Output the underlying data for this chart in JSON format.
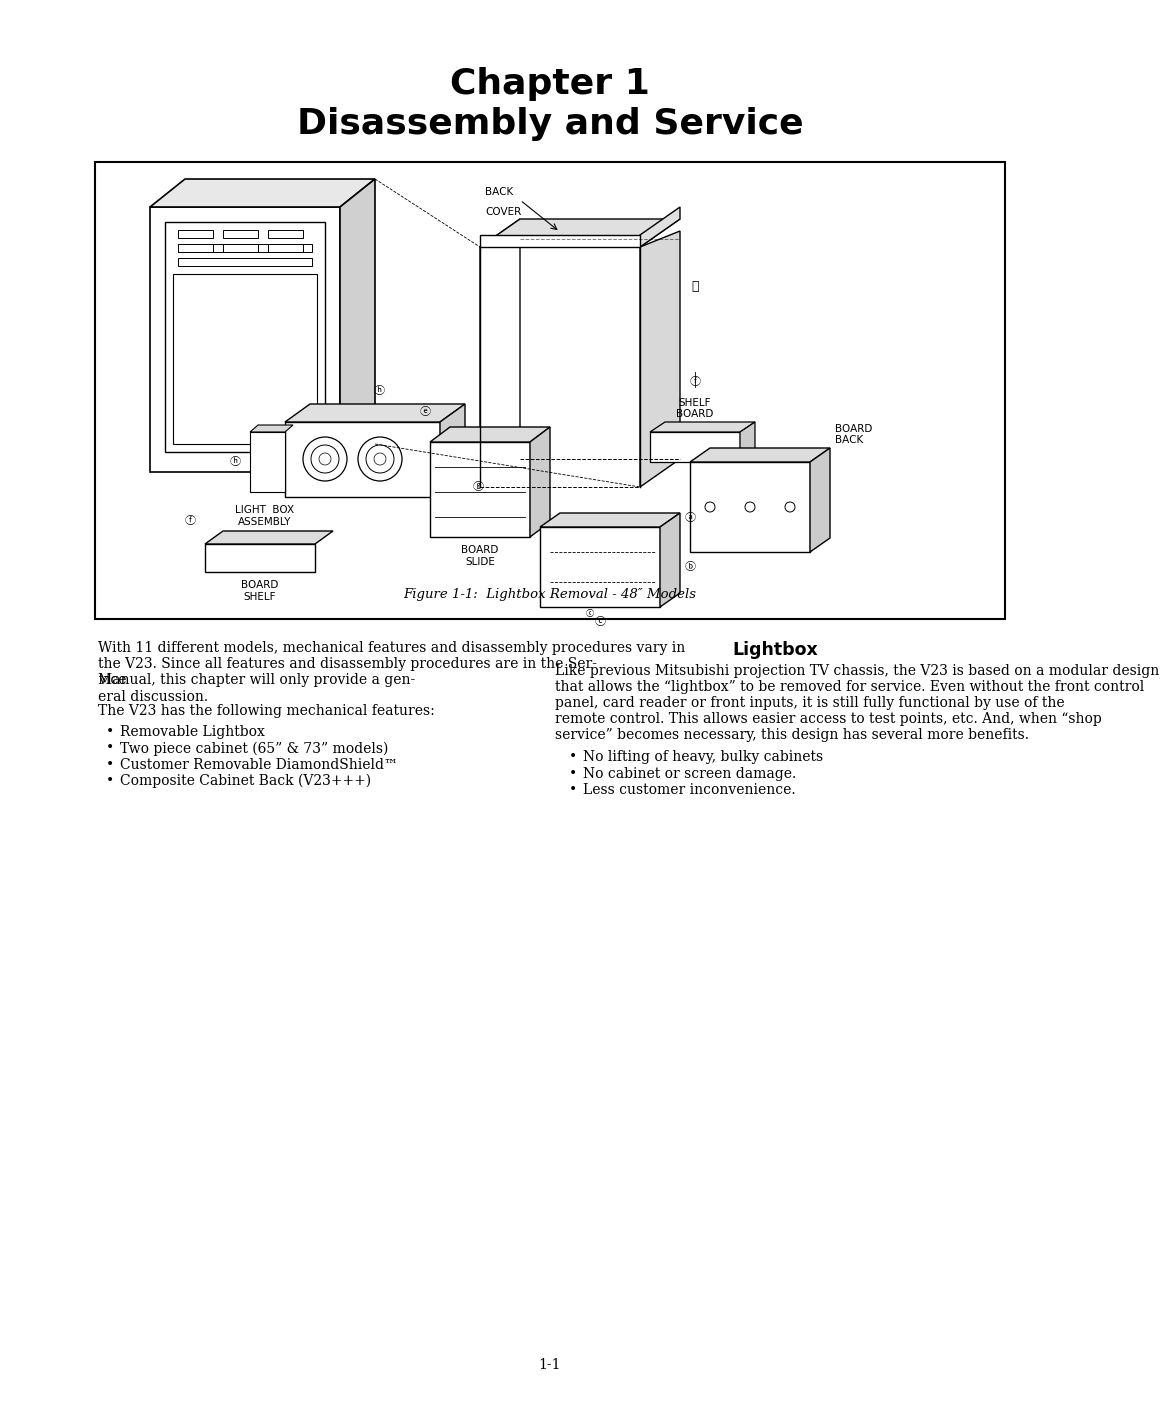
{
  "page_bg": "#ffffff",
  "title_line1": "Chapter 1",
  "title_line2": "Disassembly and Service",
  "title_fontsize": 26,
  "figure_caption": "Figure 1-1:  Lightbox Removal - 48″ Models",
  "left_col_para1": "With 11 different models, mechanical features and disassembly procedures vary in the V23.  Since all features and disassembly procedures are in the Ser-\nvice Manual, this chapter will only provide a gen-\neral discussion.",
  "left_col_para2": "The V23 has the following mechanical features:",
  "left_col_bullets": [
    "Removable Lightbox",
    "Two piece cabinet (65” & 73” models)",
    "Customer Removable DiamondShield™",
    "Composite Cabinet Back (V23+++)"
  ],
  "right_col_header": "Lightbox",
  "right_col_para": "Like previous Mitsubishi projection TV chassis, the V23 is based on a modular design that allows the “lightbox” to be removed for service.  Even without the front control panel, card reader or front inputs, it is still fully functional by use of the remote control.  This allows easier access to test points, etc.  And, when “shop service” becomes necessary, this design has several more benefits.",
  "right_col_bullets": [
    "No lifting of heavy, bulky cabinets",
    "No cabinet or screen damage.",
    "Less customer inconvenience."
  ],
  "page_number": "1-1",
  "text_color": "#000000",
  "body_fontsize": 10.0
}
